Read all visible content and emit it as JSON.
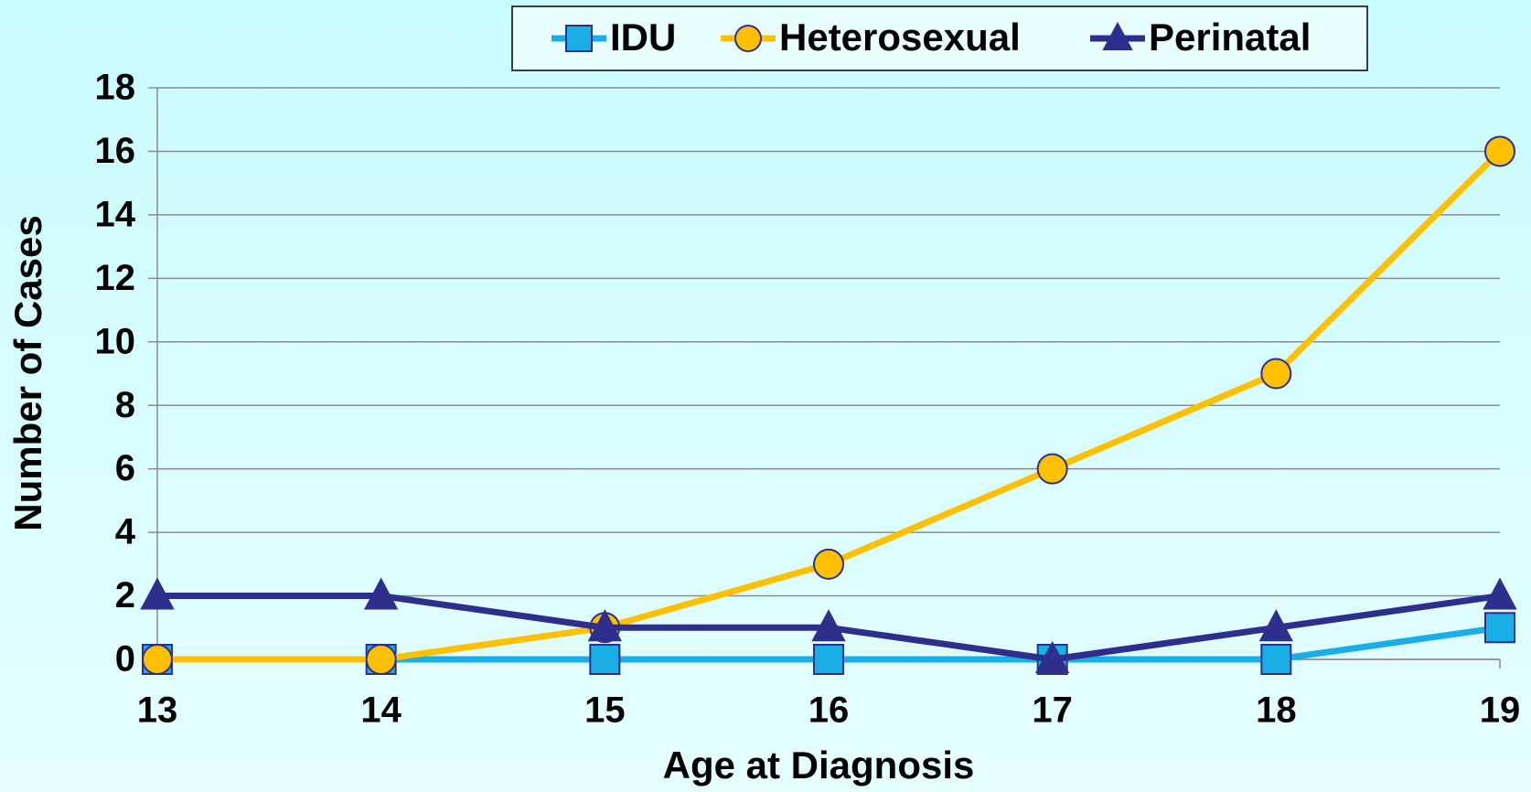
{
  "chart_data": {
    "type": "line",
    "x": [
      13,
      14,
      15,
      16,
      17,
      18,
      19
    ],
    "xlim": [
      13,
      19
    ],
    "xticks": [
      13,
      14,
      15,
      16,
      17,
      18,
      19
    ],
    "ylim": [
      0,
      18
    ],
    "yticks": [
      0,
      2,
      4,
      6,
      8,
      10,
      12,
      14,
      16,
      18
    ],
    "xlabel": "Age at Diagnosis",
    "ylabel": "Number of Cases",
    "grid": true,
    "legend": "top",
    "series": [
      {
        "name": "IDU",
        "color": "#1aaee6",
        "marker": "square",
        "values": [
          0,
          0,
          0,
          0,
          0,
          0,
          1
        ]
      },
      {
        "name": "Heterosexual",
        "color": "#ffc000",
        "marker": "circle",
        "values": [
          0,
          0,
          1,
          3,
          6,
          9,
          16
        ]
      },
      {
        "name": "Perinatal",
        "color": "#2e2e8c",
        "marker": "triangle",
        "values": [
          2,
          2,
          1,
          1,
          0,
          1,
          2
        ]
      }
    ]
  }
}
